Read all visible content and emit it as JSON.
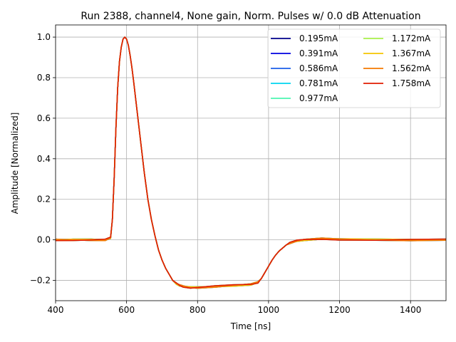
{
  "chart_data": {
    "type": "line",
    "title": "Run 2388, channel4, None gain, Norm. Pulses w/ 0.0 dB Attenuation",
    "xlabel": "Time [ns]",
    "ylabel": "Amplitude [Normalized]",
    "xlim": [
      400,
      1500
    ],
    "ylim": [
      -0.3,
      1.06
    ],
    "xticks": [
      400,
      600,
      800,
      1000,
      1200,
      1400
    ],
    "yticks": [
      -0.2,
      0.0,
      0.2,
      0.4,
      0.6,
      0.8,
      1.0
    ],
    "grid": true,
    "legend_position": "top-right",
    "legend_columns": 2,
    "series": [
      {
        "name": "0.195mA",
        "color": "#00008b"
      },
      {
        "name": "0.391mA",
        "color": "#0000e0"
      },
      {
        "name": "0.586mA",
        "color": "#1c5ee8"
      },
      {
        "name": "0.781mA",
        "color": "#00d4f0"
      },
      {
        "name": "0.977mA",
        "color": "#4cf5b0"
      },
      {
        "name": "1.172mA",
        "color": "#a8f04a"
      },
      {
        "name": "1.367mA",
        "color": "#f5c400"
      },
      {
        "name": "1.562mA",
        "color": "#f57a00"
      },
      {
        "name": "1.758mA",
        "color": "#e01c00"
      }
    ],
    "shared_curve": {
      "x": [
        400,
        450,
        500,
        540,
        555,
        560,
        565,
        570,
        575,
        580,
        585,
        590,
        595,
        600,
        605,
        610,
        615,
        620,
        630,
        640,
        650,
        660,
        670,
        680,
        690,
        700,
        710,
        720,
        730,
        740,
        750,
        760,
        780,
        800,
        850,
        900,
        950,
        970,
        980,
        990,
        1000,
        1010,
        1020,
        1030,
        1040,
        1050,
        1060,
        1080,
        1100,
        1150,
        1200,
        1300,
        1400,
        1500
      ],
      "y": [
        0.0,
        0.0,
        0.0,
        0.0,
        0.01,
        0.1,
        0.3,
        0.55,
        0.75,
        0.88,
        0.95,
        0.99,
        1.0,
        0.99,
        0.96,
        0.91,
        0.85,
        0.78,
        0.63,
        0.48,
        0.33,
        0.2,
        0.1,
        0.02,
        -0.05,
        -0.1,
        -0.14,
        -0.17,
        -0.2,
        -0.215,
        -0.225,
        -0.23,
        -0.235,
        -0.235,
        -0.23,
        -0.225,
        -0.22,
        -0.21,
        -0.19,
        -0.16,
        -0.13,
        -0.1,
        -0.075,
        -0.055,
        -0.04,
        -0.025,
        -0.015,
        -0.005,
        0.0,
        0.005,
        0.003,
        0.0,
        0.0,
        0.0
      ]
    }
  }
}
